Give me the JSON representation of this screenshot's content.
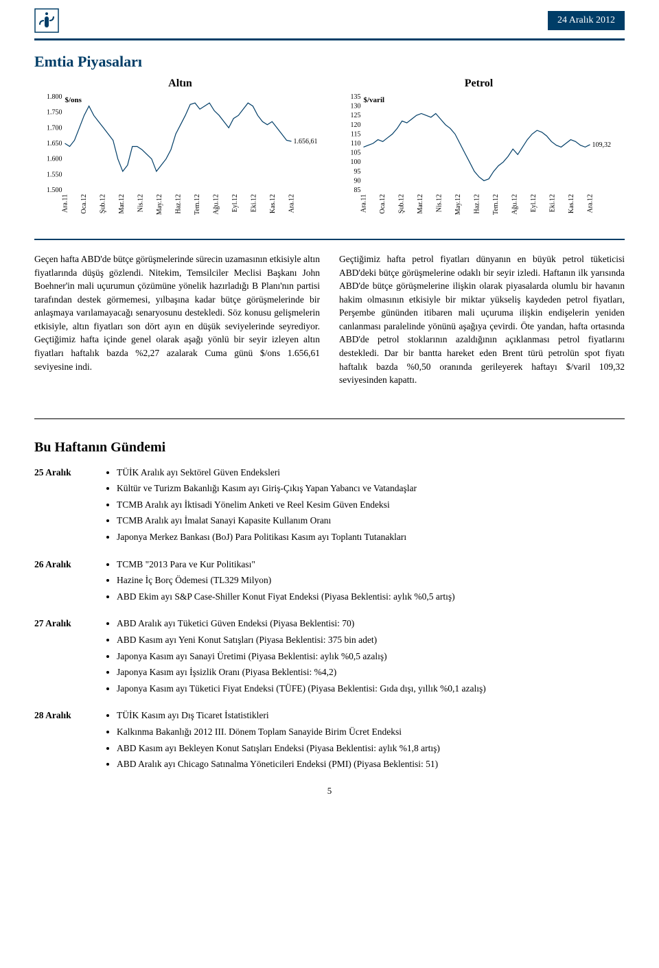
{
  "header": {
    "date_badge": "24 Aralık 2012",
    "border_color": "#003d67",
    "badge_bg": "#003d67"
  },
  "title": "Emtia Piyasaları",
  "charts": {
    "gold": {
      "title": "Altın",
      "y_axis_title": "$/ons",
      "ylim": [
        1500,
        1800
      ],
      "ytick_step": 50,
      "yticks": [
        "1.800",
        "1.750",
        "1.700",
        "1.650",
        "1.600",
        "1.550",
        "1.500"
      ],
      "end_label": "1.656,61",
      "line_color": "#003d67",
      "values": [
        1650,
        1640,
        1660,
        1700,
        1740,
        1770,
        1740,
        1720,
        1700,
        1680,
        1660,
        1600,
        1560,
        1580,
        1640,
        1640,
        1630,
        1615,
        1600,
        1560,
        1580,
        1600,
        1630,
        1680,
        1710,
        1740,
        1775,
        1780,
        1760,
        1770,
        1780,
        1755,
        1740,
        1720,
        1700,
        1730,
        1740,
        1760,
        1780,
        1770,
        1740,
        1720,
        1710,
        1720,
        1700,
        1680,
        1660,
        1656.61
      ]
    },
    "oil": {
      "title": "Petrol",
      "y_axis_title": "$/varil",
      "ylim": [
        85,
        135
      ],
      "ytick_step": 5,
      "yticks": [
        "135",
        "130",
        "125",
        "120",
        "115",
        "110",
        "105",
        "100",
        "95",
        "90",
        "85"
      ],
      "end_label": "109,32",
      "line_color": "#003d67",
      "values": [
        108,
        109,
        110,
        112,
        111,
        113,
        115,
        118,
        122,
        121,
        123,
        125,
        126,
        125,
        124,
        126,
        123,
        120,
        118,
        115,
        110,
        105,
        100,
        95,
        92,
        90,
        91,
        95,
        98,
        100,
        103,
        107,
        104,
        108,
        112,
        115,
        117,
        116,
        114,
        111,
        109,
        108,
        110,
        112,
        111,
        109,
        108,
        109.32
      ]
    },
    "xlabels": [
      "Ara.11",
      "Oca.12",
      "Şub.12",
      "Mar.12",
      "Nis.12",
      "May.12",
      "Haz.12",
      "Tem.12",
      "Ağu.12",
      "Eyl.12",
      "Eki.12",
      "Kas.12",
      "Ara.12"
    ]
  },
  "paragraphs": {
    "left": "Geçen hafta ABD'de bütçe görüşmelerinde sürecin uzamasının etkisiyle altın fiyatlarında düşüş gözlendi. Nitekim, Temsilciler Meclisi Başkanı John Boehner'in mali uçurumun çözümüne yönelik hazırladığı B Planı'nın partisi tarafından destek görmemesi, yılbaşına kadar bütçe görüşmelerinde bir anlaşmaya varılamayacağı senaryosunu destekledi. Söz konusu gelişmelerin etkisiyle, altın fiyatları son dört ayın en düşük seviyelerinde seyrediyor. Geçtiğimiz hafta içinde genel olarak aşağı yönlü bir seyir izleyen altın fiyatları haftalık bazda %2,27 azalarak Cuma günü $/ons 1.656,61 seviyesine indi.",
    "right": "Geçtiğimiz hafta petrol fiyatları dünyanın en büyük petrol tüketicisi ABD'deki bütçe görüşmelerine odaklı bir seyir izledi. Haftanın ilk yarısında ABD'de bütçe görüşmelerine ilişkin olarak piyasalarda olumlu bir havanın hakim olmasının etkisiyle bir miktar yükseliş kaydeden petrol fiyatları, Perşembe gününden itibaren mali uçuruma ilişkin endişelerin yeniden canlanması paralelinde yönünü aşağıya çevirdi. Öte yandan, hafta ortasında ABD'de petrol stoklarının azaldığının açıklanması petrol fiyatlarını destekledi. Dar bir bantta hareket eden Brent türü petrolün spot fiyatı haftalık bazda %0,50 oranında gerileyerek haftayı $/varil 109,32 seviyesinden kapattı."
  },
  "agenda_title": "Bu Haftanın Gündemi",
  "agenda": [
    {
      "date": "25 Aralık",
      "items": [
        "TÜİK Aralık ayı Sektörel Güven Endeksleri",
        "Kültür ve Turizm Bakanlığı Kasım ayı Giriş-Çıkış Yapan Yabancı ve Vatandaşlar",
        "TCMB Aralık ayı İktisadi Yönelim Anketi ve Reel Kesim Güven Endeksi",
        "TCMB Aralık ayı İmalat Sanayi Kapasite Kullanım Oranı",
        "Japonya Merkez Bankası (BoJ) Para Politikası Kasım ayı Toplantı Tutanakları"
      ]
    },
    {
      "date": "26 Aralık",
      "items": [
        "TCMB \"2013 Para ve Kur Politikası\"",
        "Hazine İç Borç Ödemesi (TL329 Milyon)",
        "ABD Ekim ayı S&P Case-Shiller Konut Fiyat Endeksi (Piyasa Beklentisi: aylık %0,5 artış)"
      ]
    },
    {
      "date": "27 Aralık",
      "items": [
        "ABD Aralık ayı Tüketici Güven Endeksi (Piyasa Beklentisi: 70)",
        "ABD Kasım ayı Yeni Konut Satışları (Piyasa Beklentisi: 375 bin adet)",
        "Japonya Kasım ayı Sanayi Üretimi (Piyasa Beklentisi: aylık %0,5 azalış)",
        "Japonya Kasım ayı İşsizlik Oranı (Piyasa Beklentisi: %4,2)",
        "Japonya Kasım ayı Tüketici Fiyat Endeksi (TÜFE) (Piyasa Beklentisi: Gıda dışı, yıllık %0,1 azalış)"
      ]
    },
    {
      "date": "28 Aralık",
      "items": [
        "TÜİK Kasım ayı Dış Ticaret İstatistikleri",
        "Kalkınma Bakanlığı 2012 III. Dönem Toplam Sanayide Birim Ücret Endeksi",
        "ABD Kasım ayı Bekleyen Konut Satışları Endeksi (Piyasa Beklentisi: aylık %1,8 artış)",
        "ABD Aralık ayı Chicago Satınalma Yöneticileri Endeksi (PMI) (Piyasa Beklentisi: 51)"
      ]
    }
  ],
  "page_number": "5"
}
